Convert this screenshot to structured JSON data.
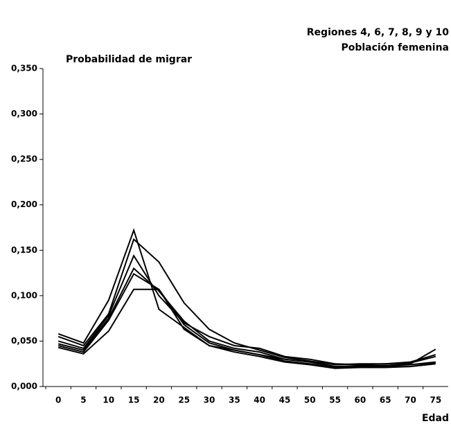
{
  "chart_data": {
    "type": "line",
    "title": "Regiones 4, 6, 7, 8, 9 y 10",
    "subtitle": "Población femenina",
    "ylabel": "Probabilidad de migrar",
    "xlabel": "Edad",
    "categories": [
      0,
      5,
      10,
      15,
      20,
      25,
      30,
      35,
      40,
      45,
      50,
      55,
      60,
      65,
      70,
      75
    ],
    "ylim": [
      0,
      0.35
    ],
    "yticks": [
      {
        "value": 0,
        "label": "0,000"
      },
      {
        "value": 0.05,
        "label": "0,050"
      },
      {
        "value": 0.1,
        "label": "0,100"
      },
      {
        "value": 0.15,
        "label": "0,150"
      },
      {
        "value": 0.2,
        "label": "0,200"
      },
      {
        "value": 0.25,
        "label": "0,250"
      },
      {
        "value": 0.3,
        "label": "0,300"
      },
      {
        "value": 0.35,
        "label": "0,350"
      }
    ],
    "series": [
      {
        "color": "#000000",
        "values": [
          0.058,
          0.048,
          0.095,
          0.172,
          0.085,
          0.065,
          0.045,
          0.04,
          0.035,
          0.03,
          0.027,
          0.022,
          0.022,
          0.023,
          0.025,
          0.041
        ]
      },
      {
        "color": "#000000",
        "values": [
          0.055,
          0.045,
          0.08,
          0.162,
          0.137,
          0.092,
          0.063,
          0.048,
          0.04,
          0.032,
          0.028,
          0.024,
          0.025,
          0.025,
          0.027,
          0.035
        ]
      },
      {
        "color": "#000000",
        "values": [
          0.05,
          0.042,
          0.078,
          0.144,
          0.1,
          0.07,
          0.055,
          0.045,
          0.042,
          0.033,
          0.03,
          0.025,
          0.024,
          0.025,
          0.026,
          0.033
        ]
      },
      {
        "color": "#000000",
        "values": [
          0.047,
          0.04,
          0.075,
          0.13,
          0.105,
          0.072,
          0.05,
          0.042,
          0.038,
          0.03,
          0.027,
          0.022,
          0.023,
          0.023,
          0.024,
          0.027
        ]
      },
      {
        "color": "#000000",
        "values": [
          0.045,
          0.038,
          0.073,
          0.124,
          0.107,
          0.068,
          0.048,
          0.04,
          0.035,
          0.028,
          0.025,
          0.021,
          0.021,
          0.022,
          0.022,
          0.026
        ]
      },
      {
        "color": "#000000",
        "values": [
          0.043,
          0.036,
          0.061,
          0.107,
          0.107,
          0.063,
          0.045,
          0.038,
          0.033,
          0.027,
          0.024,
          0.02,
          0.021,
          0.021,
          0.022,
          0.025
        ]
      }
    ]
  }
}
